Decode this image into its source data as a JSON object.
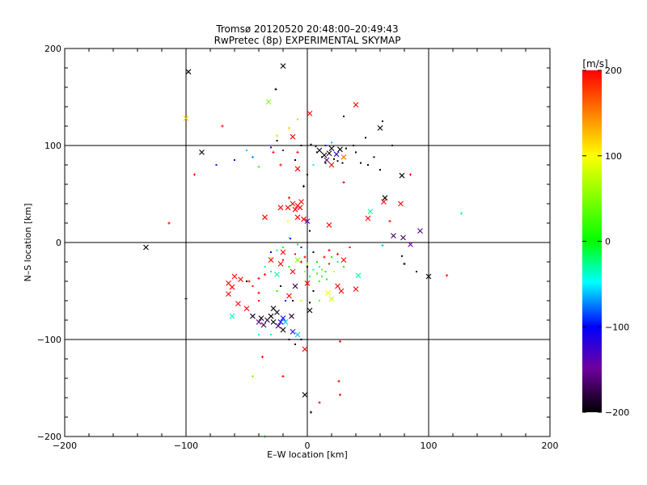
{
  "chart_data": {
    "type": "scatter",
    "title": "Tromsø 20120520 20:48:00–20:49:43",
    "subtitle": "RwPretec (8p) EXPERIMENTAL SKYMAP",
    "xlabel": "E–W location [km]",
    "ylabel": "N–S location [km]",
    "xlim": [
      -200,
      200
    ],
    "ylim": [
      -200,
      200
    ],
    "xticks": [
      "−200",
      "−100",
      "0",
      "100",
      "200"
    ],
    "yticks": [
      "−200",
      "−100",
      "0",
      "100",
      "200"
    ],
    "grid": true,
    "grid_lines": [
      -100,
      0,
      100
    ],
    "colorbar": {
      "label": "[m/s]",
      "min": -200,
      "max": 200,
      "ticks": [
        "200",
        "100",
        "0",
        "−100",
        "−200"
      ],
      "colors": [
        "#ff0000",
        "#ffff00",
        "#00ff00",
        "#00ffff",
        "#0000ff",
        "#7000a0",
        "#000000"
      ]
    },
    "series": [
      {
        "marker": "x",
        "points": [
          [
            -98,
            176,
            -200
          ],
          [
            -20,
            182,
            -200
          ],
          [
            -100,
            128,
            120
          ],
          [
            -32,
            145,
            50
          ],
          [
            2,
            133,
            200
          ],
          [
            40,
            142,
            200
          ],
          [
            60,
            118,
            -200
          ],
          [
            -12,
            109,
            200
          ],
          [
            -87,
            93,
            -200
          ],
          [
            10,
            95,
            -200
          ],
          [
            14,
            90,
            -200
          ],
          [
            18,
            92,
            -190
          ],
          [
            20,
            97,
            -200
          ],
          [
            24,
            91,
            -120
          ],
          [
            27,
            96,
            -200
          ],
          [
            16,
            85,
            -160
          ],
          [
            20,
            80,
            200
          ],
          [
            30,
            88,
            160
          ],
          [
            -8,
            76,
            200
          ],
          [
            78,
            69,
            -200
          ],
          [
            64,
            46,
            -200
          ],
          [
            63,
            42,
            200
          ],
          [
            77,
            40,
            200
          ],
          [
            52,
            32,
            -30
          ],
          [
            50,
            25,
            200
          ],
          [
            -8,
            38,
            200
          ],
          [
            -12,
            40,
            200
          ],
          [
            -5,
            42,
            200
          ],
          [
            -10,
            34,
            200
          ],
          [
            -16,
            36,
            200
          ],
          [
            -22,
            36,
            200
          ],
          [
            -6,
            36,
            200
          ],
          [
            -8,
            26,
            200
          ],
          [
            -3,
            24,
            200
          ],
          [
            18,
            18,
            200
          ],
          [
            -35,
            26,
            200
          ],
          [
            0,
            22,
            -140
          ],
          [
            93,
            12,
            -160
          ],
          [
            71,
            7,
            -170
          ],
          [
            79,
            5,
            -170
          ],
          [
            85,
            -2,
            -150
          ],
          [
            -133,
            -5,
            -200
          ],
          [
            -20,
            -10,
            200
          ],
          [
            -30,
            -18,
            200
          ],
          [
            -22,
            -22,
            200
          ],
          [
            -8,
            -18,
            50
          ],
          [
            -12,
            -30,
            200
          ],
          [
            -25,
            -33,
            -30
          ],
          [
            -10,
            -45,
            -180
          ],
          [
            -15,
            -55,
            200
          ],
          [
            -55,
            -38,
            200
          ],
          [
            -60,
            -35,
            200
          ],
          [
            -65,
            -42,
            200
          ],
          [
            -62,
            -46,
            200
          ],
          [
            0,
            -42,
            200
          ],
          [
            25,
            -45,
            200
          ],
          [
            28,
            -50,
            200
          ],
          [
            17,
            -52,
            100
          ],
          [
            20,
            -58,
            80
          ],
          [
            40,
            -48,
            200
          ],
          [
            30,
            -18,
            200
          ],
          [
            42,
            -34,
            -30
          ],
          [
            -28,
            -68,
            -200
          ],
          [
            -25,
            -72,
            -200
          ],
          [
            -30,
            -76,
            -200
          ],
          [
            -33,
            -80,
            -180
          ],
          [
            -28,
            -82,
            -200
          ],
          [
            -24,
            -86,
            -160
          ],
          [
            -20,
            -90,
            -200
          ],
          [
            -13,
            -76,
            -180
          ],
          [
            -40,
            -82,
            -160
          ],
          [
            -36,
            -85,
            -180
          ],
          [
            -38,
            -78,
            -200
          ],
          [
            -22,
            -82,
            -100
          ],
          [
            -45,
            -76,
            -190
          ],
          [
            -62,
            -76,
            -40
          ],
          [
            -50,
            -68,
            200
          ],
          [
            -20,
            -78,
            -100
          ],
          [
            -18,
            -82,
            -60
          ],
          [
            -12,
            -92,
            -120
          ],
          [
            -8,
            -95,
            -60
          ],
          [
            2,
            -70,
            -200
          ],
          [
            -2,
            -110,
            200
          ],
          [
            100,
            -35,
            -200
          ],
          [
            -2,
            -157,
            -200
          ],
          [
            -57,
            -63,
            200
          ],
          [
            -65,
            -53,
            200
          ]
        ]
      },
      {
        "marker": "+",
        "points": [
          [
            -93,
            70,
            200
          ],
          [
            -3,
            58,
            -200
          ],
          [
            -8,
            93,
            200
          ],
          [
            -28,
            93,
            200
          ],
          [
            -22,
            80,
            200
          ],
          [
            -40,
            78,
            30
          ],
          [
            30,
            62,
            200
          ],
          [
            85,
            70,
            200
          ],
          [
            -114,
            20,
            200
          ],
          [
            -15,
            46,
            200
          ],
          [
            -100,
            -58,
            -200
          ],
          [
            -2,
            -15,
            200
          ],
          [
            -5,
            -20,
            200
          ],
          [
            0,
            -22,
            50
          ],
          [
            -40,
            -37,
            200
          ],
          [
            -35,
            -33,
            200
          ],
          [
            -48,
            -40,
            200
          ],
          [
            -40,
            -52,
            200
          ],
          [
            -30,
            -16,
            80
          ],
          [
            14,
            -15,
            200
          ],
          [
            25,
            -12,
            200
          ],
          [
            18,
            -8,
            200
          ],
          [
            -37,
            -118,
            200
          ],
          [
            -45,
            -138,
            60
          ],
          [
            -20,
            -138,
            200
          ],
          [
            26,
            -143,
            200
          ],
          [
            27,
            -157,
            200
          ],
          [
            10,
            -165,
            200
          ],
          [
            3,
            -175,
            -200
          ],
          [
            -35,
            -200,
            -10
          ],
          [
            27,
            -102,
            200
          ],
          [
            68,
            22,
            200
          ],
          [
            115,
            -34,
            200
          ],
          [
            127,
            30,
            -30
          ],
          [
            62,
            -3,
            -60
          ],
          [
            80,
            -22,
            -200
          ],
          [
            -26,
            158,
            -200
          ],
          [
            -15,
            118,
            120
          ],
          [
            -25,
            110,
            70
          ],
          [
            -45,
            88,
            -70
          ],
          [
            -70,
            120,
            200
          ]
        ]
      },
      {
        "marker": "dot",
        "points": [
          [
            3,
            101,
            -200
          ],
          [
            7,
            99,
            -180
          ],
          [
            8,
            93,
            -200
          ],
          [
            12,
            88,
            -200
          ],
          [
            15,
            82,
            -200
          ],
          [
            22,
            86,
            -200
          ],
          [
            25,
            84,
            -190
          ],
          [
            29,
            82,
            -200
          ],
          [
            32,
            97,
            -200
          ],
          [
            38,
            100,
            -200
          ],
          [
            40,
            93,
            -200
          ],
          [
            44,
            82,
            -200
          ],
          [
            50,
            80,
            -200
          ],
          [
            55,
            88,
            -200
          ],
          [
            60,
            75,
            -200
          ],
          [
            5,
            80,
            -40
          ],
          [
            0,
            70,
            -200
          ],
          [
            30,
            130,
            -200
          ],
          [
            -8,
            127,
            120
          ],
          [
            -5,
            100,
            -200
          ],
          [
            -20,
            95,
            -160
          ],
          [
            -30,
            98,
            -100
          ],
          [
            -50,
            95,
            -60
          ],
          [
            -25,
            105,
            -200
          ],
          [
            48,
            108,
            -200
          ],
          [
            62,
            125,
            -180
          ],
          [
            70,
            100,
            -200
          ],
          [
            -60,
            85,
            -120
          ],
          [
            -75,
            80,
            -120
          ],
          [
            -10,
            85,
            -200
          ],
          [
            15,
            100,
            -120
          ],
          [
            20,
            103,
            -60
          ],
          [
            2,
            12,
            -200
          ],
          [
            -16,
            22,
            100
          ],
          [
            -14,
            4,
            -100
          ],
          [
            -8,
            -2,
            0
          ],
          [
            -5,
            -5,
            -100
          ],
          [
            0,
            -8,
            -60
          ],
          [
            -20,
            -5,
            0
          ],
          [
            -25,
            -8,
            -20
          ],
          [
            -15,
            -25,
            0
          ],
          [
            -10,
            -12,
            200
          ],
          [
            5,
            -10,
            -200
          ],
          [
            8,
            -20,
            0
          ],
          [
            10,
            -25,
            -30
          ],
          [
            12,
            -28,
            40
          ],
          [
            15,
            -30,
            0
          ],
          [
            5,
            -28,
            -30
          ],
          [
            8,
            -32,
            20
          ],
          [
            12,
            -35,
            -10
          ],
          [
            16,
            -38,
            0
          ],
          [
            10,
            -40,
            20
          ],
          [
            2,
            -35,
            -20
          ],
          [
            -2,
            -30,
            60
          ],
          [
            18,
            -22,
            200
          ],
          [
            22,
            -30,
            80
          ],
          [
            -12,
            -60,
            -200
          ],
          [
            -18,
            -60,
            -100
          ],
          [
            -22,
            -45,
            -200
          ],
          [
            -5,
            -60,
            80
          ],
          [
            -25,
            -50,
            10
          ],
          [
            -30,
            -30,
            -20
          ],
          [
            -35,
            -25,
            -30
          ],
          [
            -5,
            -100,
            -200
          ],
          [
            -10,
            -105,
            -200
          ],
          [
            5,
            -50,
            -200
          ],
          [
            10,
            -60,
            40
          ],
          [
            20,
            -15,
            0
          ],
          [
            25,
            -20,
            -30
          ],
          [
            -15,
            5,
            50
          ],
          [
            -30,
            -10,
            -100
          ],
          [
            -20,
            -18,
            200
          ],
          [
            30,
            -25,
            0
          ],
          [
            35,
            -5,
            200
          ],
          [
            78,
            -14,
            -200
          ],
          [
            90,
            -30,
            -200
          ],
          [
            -40,
            -95,
            -40
          ],
          [
            -30,
            -95,
            -40
          ],
          [
            -15,
            -100,
            -200
          ],
          [
            -40,
            -60,
            200
          ],
          [
            -45,
            -45,
            200
          ],
          [
            -50,
            -40,
            -200
          ],
          [
            2,
            -62,
            -200
          ],
          [
            0,
            -25,
            -200
          ]
        ]
      }
    ]
  }
}
